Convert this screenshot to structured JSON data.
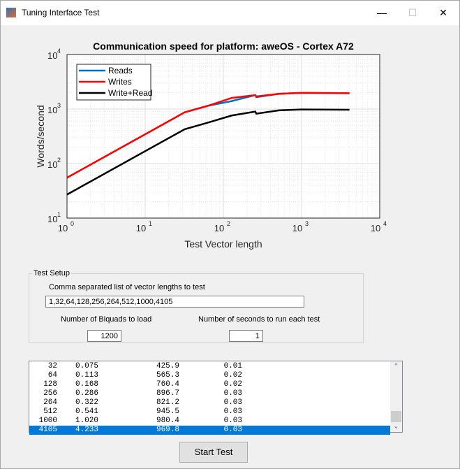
{
  "window": {
    "title": "Tuning Interface Test",
    "minimize": "—",
    "maximize": "☐",
    "close": "✕"
  },
  "chart_data": {
    "type": "line",
    "title": "Communication speed for platform:  aweOS - Cortex A72",
    "xlabel": "Test Vector length",
    "ylabel": "Words/second",
    "xscale": "log",
    "yscale": "log",
    "xlim": [
      1,
      10000
    ],
    "ylim": [
      10,
      10000
    ],
    "grid": true,
    "legend_placement": "top-left",
    "x": [
      1,
      32,
      64,
      128,
      256,
      264,
      512,
      1000,
      4105
    ],
    "series": [
      {
        "name": "Reads",
        "color": "#0072bd",
        "values": [
          55,
          870,
          1150,
          1400,
          1800,
          1650,
          1900,
          1980,
          1950
        ]
      },
      {
        "name": "Writes",
        "color": "#ff0000",
        "values": [
          55,
          870,
          1150,
          1600,
          1800,
          1700,
          1900,
          1980,
          1950
        ]
      },
      {
        "name": "Write+Read",
        "color": "#000000",
        "values": [
          27,
          425.9,
          565.3,
          760.4,
          896.7,
          821.2,
          945.5,
          980.4,
          969.8
        ]
      }
    ],
    "xticks": [
      "10",
      "10",
      "10",
      "10",
      "10"
    ],
    "xexp": [
      "0",
      "1",
      "2",
      "3",
      "4"
    ],
    "yticks": [
      "10",
      "10",
      "10",
      "10"
    ],
    "yexp": [
      "1",
      "2",
      "3",
      "4"
    ]
  },
  "setup": {
    "legend": "Test Setup",
    "vec_label": "Comma separated list of vector lengths to test",
    "vec_value": "1,32,64,128,256,264,512,1000,4105",
    "biquad_label": "Number of Biquads to load",
    "biquad_value": "1200",
    "seconds_label": "Number of seconds to run each test",
    "seconds_value": "1"
  },
  "results": [
    [
      "32",
      "0.075",
      "425.9",
      "0.01"
    ],
    [
      "64",
      "0.113",
      "565.3",
      "0.02"
    ],
    [
      "128",
      "0.168",
      "760.4",
      "0.02"
    ],
    [
      "256",
      "0.286",
      "896.7",
      "0.03"
    ],
    [
      "264",
      "0.322",
      "821.2",
      "0.03"
    ],
    [
      "512",
      "0.541",
      "945.5",
      "0.03"
    ],
    [
      "1000",
      "1.020",
      "980.4",
      "0.03"
    ],
    [
      "4105",
      "4.233",
      "969.8",
      "0.03"
    ]
  ],
  "start_button": "Start Test"
}
